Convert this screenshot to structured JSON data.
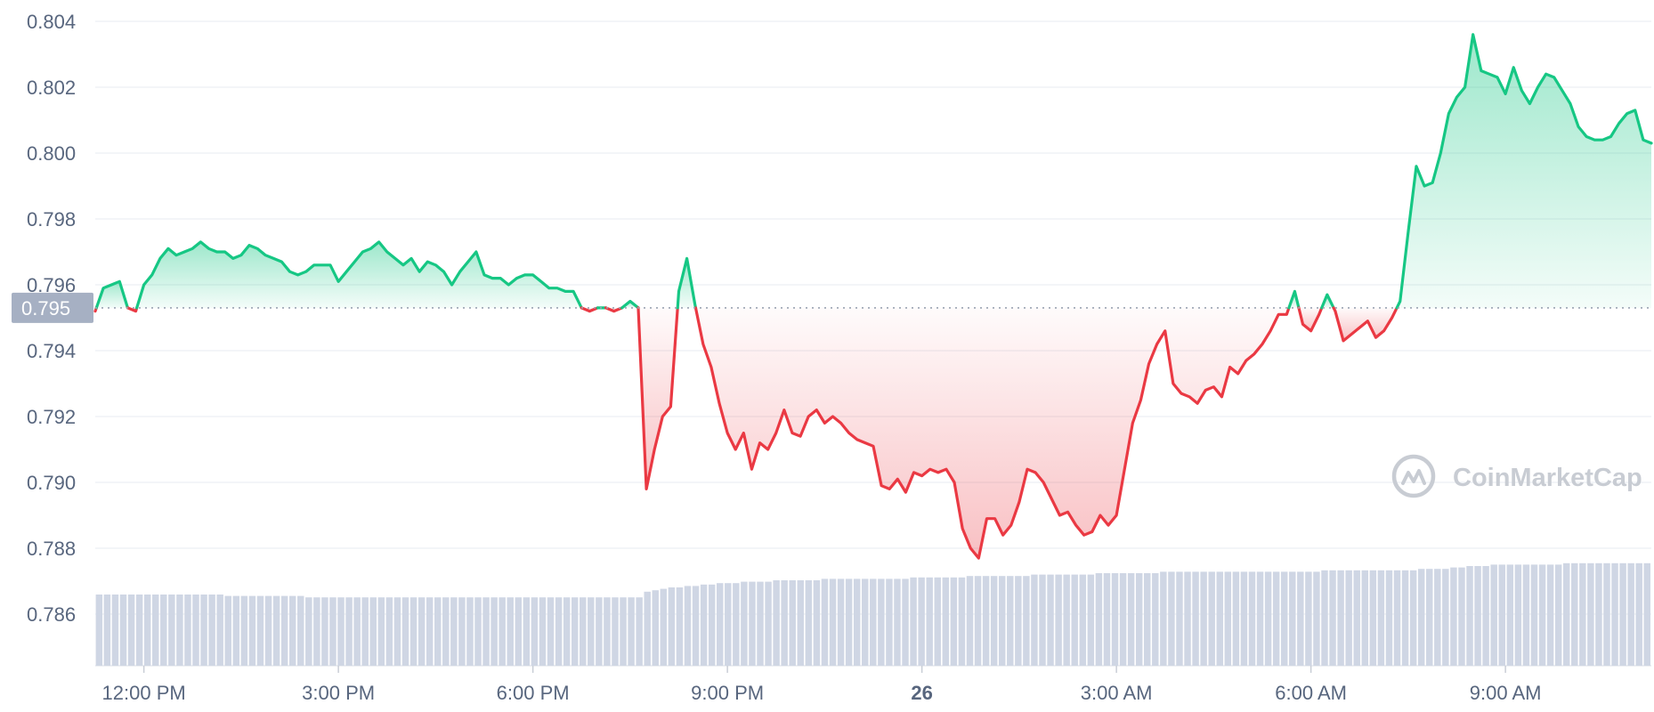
{
  "watermark": "CoinMarketCap",
  "colors": {
    "up": "#16c784",
    "down": "#ea3943",
    "grid": "#eff2f5",
    "axis_text": "#58667e",
    "volume": "#cfd6e4",
    "badge": "#a6b0c3"
  },
  "chart_data": {
    "type": "area",
    "ylim": [
      0.7845,
      0.8045
    ],
    "xlim": [
      0,
      192
    ],
    "grid": true,
    "reference": {
      "value": 0.7953,
      "label": "0.795"
    },
    "y_ticks": [
      {
        "value": 0.804,
        "label": "0.804"
      },
      {
        "value": 0.802,
        "label": "0.802"
      },
      {
        "value": 0.8,
        "label": "0.800"
      },
      {
        "value": 0.798,
        "label": "0.798"
      },
      {
        "value": 0.796,
        "label": "0.796"
      },
      {
        "value": 0.794,
        "label": "0.794"
      },
      {
        "value": 0.792,
        "label": "0.792"
      },
      {
        "value": 0.79,
        "label": "0.790"
      },
      {
        "value": 0.788,
        "label": "0.788"
      },
      {
        "value": 0.786,
        "label": "0.786"
      }
    ],
    "x_ticks": [
      {
        "value": 6,
        "label": "12:00 PM",
        "bold": false
      },
      {
        "value": 30,
        "label": "3:00 PM",
        "bold": false
      },
      {
        "value": 54,
        "label": "6:00 PM",
        "bold": false
      },
      {
        "value": 78,
        "label": "9:00 PM",
        "bold": false
      },
      {
        "value": 102,
        "label": "26",
        "bold": true
      },
      {
        "value": 126,
        "label": "3:00 AM",
        "bold": false
      },
      {
        "value": 150,
        "label": "6:00 AM",
        "bold": false
      },
      {
        "value": 174,
        "label": "9:00 AM",
        "bold": false
      }
    ],
    "series": [
      {
        "points": [
          [
            0,
            0.7952
          ],
          [
            1,
            0.7959
          ],
          [
            2,
            0.796
          ],
          [
            3,
            0.7961
          ],
          [
            4,
            0.7953
          ],
          [
            5,
            0.7952
          ],
          [
            6,
            0.796
          ],
          [
            7,
            0.7963
          ],
          [
            8,
            0.7968
          ],
          [
            9,
            0.7971
          ],
          [
            10,
            0.7969
          ],
          [
            11,
            0.797
          ],
          [
            12,
            0.7971
          ],
          [
            13,
            0.7973
          ],
          [
            14,
            0.7971
          ],
          [
            15,
            0.797
          ],
          [
            16,
            0.797
          ],
          [
            17,
            0.7968
          ],
          [
            18,
            0.7969
          ],
          [
            19,
            0.7972
          ],
          [
            20,
            0.7971
          ],
          [
            21,
            0.7969
          ],
          [
            22,
            0.7968
          ],
          [
            23,
            0.7967
          ],
          [
            24,
            0.7964
          ],
          [
            25,
            0.7963
          ],
          [
            26,
            0.7964
          ],
          [
            27,
            0.7966
          ],
          [
            28,
            0.7966
          ],
          [
            29,
            0.7966
          ],
          [
            30,
            0.7961
          ],
          [
            31,
            0.7964
          ],
          [
            32,
            0.7967
          ],
          [
            33,
            0.797
          ],
          [
            34,
            0.7971
          ],
          [
            35,
            0.7973
          ],
          [
            36,
            0.797
          ],
          [
            37,
            0.7968
          ],
          [
            38,
            0.7966
          ],
          [
            39,
            0.7968
          ],
          [
            40,
            0.7964
          ],
          [
            41,
            0.7967
          ],
          [
            42,
            0.7966
          ],
          [
            43,
            0.7964
          ],
          [
            44,
            0.796
          ],
          [
            45,
            0.7964
          ],
          [
            46,
            0.7967
          ],
          [
            47,
            0.797
          ],
          [
            48,
            0.7963
          ],
          [
            49,
            0.7962
          ],
          [
            50,
            0.7962
          ],
          [
            51,
            0.796
          ],
          [
            52,
            0.7962
          ],
          [
            53,
            0.7963
          ],
          [
            54,
            0.7963
          ],
          [
            55,
            0.7961
          ],
          [
            56,
            0.7959
          ],
          [
            57,
            0.7959
          ],
          [
            58,
            0.7958
          ],
          [
            59,
            0.7958
          ],
          [
            60,
            0.7953
          ],
          [
            61,
            0.7952
          ],
          [
            62,
            0.7953
          ],
          [
            63,
            0.7953
          ],
          [
            64,
            0.7952
          ],
          [
            65,
            0.7953
          ],
          [
            66,
            0.7955
          ],
          [
            67,
            0.7953
          ],
          [
            68,
            0.7898
          ],
          [
            69,
            0.791
          ],
          [
            70,
            0.792
          ],
          [
            71,
            0.7923
          ],
          [
            72,
            0.7958
          ],
          [
            73,
            0.7968
          ],
          [
            74,
            0.7954
          ],
          [
            75,
            0.7942
          ],
          [
            76,
            0.7935
          ],
          [
            77,
            0.7924
          ],
          [
            78,
            0.7915
          ],
          [
            79,
            0.791
          ],
          [
            80,
            0.7915
          ],
          [
            81,
            0.7904
          ],
          [
            82,
            0.7912
          ],
          [
            83,
            0.791
          ],
          [
            84,
            0.7915
          ],
          [
            85,
            0.7922
          ],
          [
            86,
            0.7915
          ],
          [
            87,
            0.7914
          ],
          [
            88,
            0.792
          ],
          [
            89,
            0.7922
          ],
          [
            90,
            0.7918
          ],
          [
            91,
            0.792
          ],
          [
            92,
            0.7918
          ],
          [
            93,
            0.7915
          ],
          [
            94,
            0.7913
          ],
          [
            95,
            0.7912
          ],
          [
            96,
            0.7911
          ],
          [
            97,
            0.7899
          ],
          [
            98,
            0.7898
          ],
          [
            99,
            0.7901
          ],
          [
            100,
            0.7897
          ],
          [
            101,
            0.7903
          ],
          [
            102,
            0.7902
          ],
          [
            103,
            0.7904
          ],
          [
            104,
            0.7903
          ],
          [
            105,
            0.7904
          ],
          [
            106,
            0.79
          ],
          [
            107,
            0.7886
          ],
          [
            108,
            0.788
          ],
          [
            109,
            0.7877
          ],
          [
            110,
            0.7889
          ],
          [
            111,
            0.7889
          ],
          [
            112,
            0.7884
          ],
          [
            113,
            0.7887
          ],
          [
            114,
            0.7894
          ],
          [
            115,
            0.7904
          ],
          [
            116,
            0.7903
          ],
          [
            117,
            0.79
          ],
          [
            118,
            0.7895
          ],
          [
            119,
            0.789
          ],
          [
            120,
            0.7891
          ],
          [
            121,
            0.7887
          ],
          [
            122,
            0.7884
          ],
          [
            123,
            0.7885
          ],
          [
            124,
            0.789
          ],
          [
            125,
            0.7887
          ],
          [
            126,
            0.789
          ],
          [
            127,
            0.7904
          ],
          [
            128,
            0.7918
          ],
          [
            129,
            0.7925
          ],
          [
            130,
            0.7936
          ],
          [
            131,
            0.7942
          ],
          [
            132,
            0.7946
          ],
          [
            133,
            0.793
          ],
          [
            134,
            0.7927
          ],
          [
            135,
            0.7926
          ],
          [
            136,
            0.7924
          ],
          [
            137,
            0.7928
          ],
          [
            138,
            0.7929
          ],
          [
            139,
            0.7926
          ],
          [
            140,
            0.7935
          ],
          [
            141,
            0.7933
          ],
          [
            142,
            0.7937
          ],
          [
            143,
            0.7939
          ],
          [
            144,
            0.7942
          ],
          [
            145,
            0.7946
          ],
          [
            146,
            0.7951
          ],
          [
            147,
            0.7951
          ],
          [
            148,
            0.7958
          ],
          [
            149,
            0.7948
          ],
          [
            150,
            0.7946
          ],
          [
            151,
            0.7951
          ],
          [
            152,
            0.7957
          ],
          [
            153,
            0.7952
          ],
          [
            154,
            0.7943
          ],
          [
            155,
            0.7945
          ],
          [
            156,
            0.7947
          ],
          [
            157,
            0.7949
          ],
          [
            158,
            0.7944
          ],
          [
            159,
            0.7946
          ],
          [
            160,
            0.795
          ],
          [
            161,
            0.7955
          ],
          [
            162,
            0.7976
          ],
          [
            163,
            0.7996
          ],
          [
            164,
            0.799
          ],
          [
            165,
            0.7991
          ],
          [
            166,
            0.8
          ],
          [
            167,
            0.8012
          ],
          [
            168,
            0.8017
          ],
          [
            169,
            0.802
          ],
          [
            170,
            0.8036
          ],
          [
            171,
            0.8025
          ],
          [
            172,
            0.8024
          ],
          [
            173,
            0.8023
          ],
          [
            174,
            0.8018
          ],
          [
            175,
            0.8026
          ],
          [
            176,
            0.8019
          ],
          [
            177,
            0.8015
          ],
          [
            178,
            0.802
          ],
          [
            179,
            0.8024
          ],
          [
            180,
            0.8023
          ],
          [
            181,
            0.8019
          ],
          [
            182,
            0.8015
          ],
          [
            183,
            0.8008
          ],
          [
            184,
            0.8005
          ],
          [
            185,
            0.8004
          ],
          [
            186,
            0.8004
          ],
          [
            187,
            0.8005
          ],
          [
            188,
            0.8009
          ],
          [
            189,
            0.8012
          ],
          [
            190,
            0.8013
          ],
          [
            191,
            0.8004
          ],
          [
            192,
            0.8003
          ]
        ]
      }
    ],
    "volume_note": "volume bars shown as relative levels (0–1)",
    "volume": [
      0.5,
      0.5,
      0.5,
      0.5,
      0.5,
      0.5,
      0.5,
      0.5,
      0.5,
      0.5,
      0.5,
      0.5,
      0.5,
      0.5,
      0.5,
      0.5,
      0.49,
      0.49,
      0.49,
      0.49,
      0.49,
      0.49,
      0.49,
      0.49,
      0.49,
      0.49,
      0.48,
      0.48,
      0.48,
      0.48,
      0.48,
      0.48,
      0.48,
      0.48,
      0.48,
      0.48,
      0.48,
      0.48,
      0.48,
      0.48,
      0.48,
      0.48,
      0.48,
      0.48,
      0.48,
      0.48,
      0.48,
      0.48,
      0.48,
      0.48,
      0.48,
      0.48,
      0.48,
      0.48,
      0.48,
      0.48,
      0.48,
      0.48,
      0.48,
      0.48,
      0.48,
      0.48,
      0.48,
      0.48,
      0.48,
      0.48,
      0.48,
      0.48,
      0.52,
      0.53,
      0.54,
      0.55,
      0.55,
      0.56,
      0.56,
      0.57,
      0.57,
      0.58,
      0.58,
      0.58,
      0.59,
      0.59,
      0.59,
      0.59,
      0.6,
      0.6,
      0.6,
      0.6,
      0.6,
      0.6,
      0.61,
      0.61,
      0.61,
      0.61,
      0.61,
      0.61,
      0.61,
      0.61,
      0.61,
      0.61,
      0.61,
      0.62,
      0.62,
      0.62,
      0.62,
      0.62,
      0.62,
      0.62,
      0.63,
      0.63,
      0.63,
      0.63,
      0.63,
      0.63,
      0.63,
      0.63,
      0.64,
      0.64,
      0.64,
      0.64,
      0.64,
      0.64,
      0.64,
      0.64,
      0.65,
      0.65,
      0.65,
      0.65,
      0.65,
      0.65,
      0.65,
      0.65,
      0.66,
      0.66,
      0.66,
      0.66,
      0.66,
      0.66,
      0.66,
      0.66,
      0.66,
      0.66,
      0.66,
      0.66,
      0.66,
      0.66,
      0.66,
      0.66,
      0.66,
      0.66,
      0.66,
      0.66,
      0.67,
      0.67,
      0.67,
      0.67,
      0.67,
      0.67,
      0.67,
      0.67,
      0.67,
      0.67,
      0.67,
      0.67,
      0.68,
      0.68,
      0.68,
      0.68,
      0.69,
      0.69,
      0.7,
      0.7,
      0.7,
      0.71,
      0.71,
      0.71,
      0.71,
      0.71,
      0.71,
      0.71,
      0.71,
      0.71,
      0.72,
      0.72,
      0.72,
      0.72,
      0.72,
      0.72,
      0.72,
      0.72,
      0.72,
      0.72,
      0.72
    ]
  }
}
